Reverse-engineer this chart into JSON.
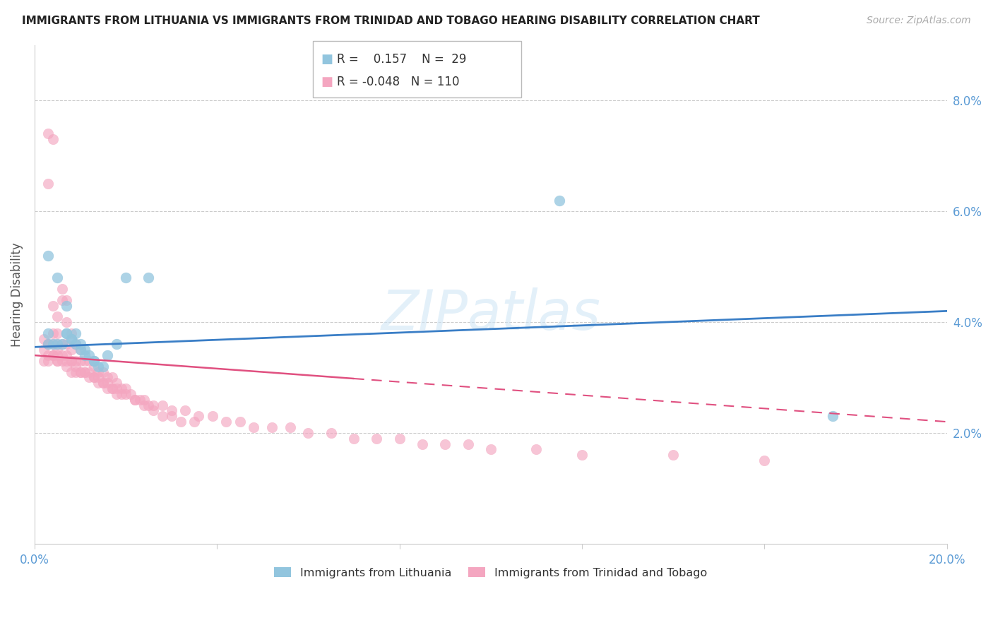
{
  "title": "IMMIGRANTS FROM LITHUANIA VS IMMIGRANTS FROM TRINIDAD AND TOBAGO HEARING DISABILITY CORRELATION CHART",
  "source": "Source: ZipAtlas.com",
  "ylabel": "Hearing Disability",
  "xlim": [
    0.0,
    0.2
  ],
  "ylim": [
    0.0,
    0.09
  ],
  "xticks": [
    0.0,
    0.04,
    0.08,
    0.12,
    0.16,
    0.2
  ],
  "xtick_labels": [
    "0.0%",
    "",
    "",
    "",
    "",
    "20.0%"
  ],
  "yticks": [
    0.02,
    0.04,
    0.06,
    0.08
  ],
  "ytick_labels": [
    "2.0%",
    "4.0%",
    "6.0%",
    "8.0%"
  ],
  "color_blue": "#92c5de",
  "color_pink": "#f4a6c0",
  "color_blue_line": "#3a7ec6",
  "color_pink_line": "#e05080",
  "legend_R_blue": "0.157",
  "legend_N_blue": "29",
  "legend_R_pink": "-0.048",
  "legend_N_pink": "110",
  "watermark": "ZIPatlas",
  "blue_line_y_start": 0.0355,
  "blue_line_y_end": 0.042,
  "pink_line_y_start": 0.034,
  "pink_line_y_end": 0.022,
  "blue_points_x": [
    0.003,
    0.005,
    0.007,
    0.007,
    0.008,
    0.008,
    0.009,
    0.009,
    0.01,
    0.01,
    0.011,
    0.011,
    0.012,
    0.013,
    0.013,
    0.014,
    0.015,
    0.016,
    0.018,
    0.02,
    0.025,
    0.003,
    0.004,
    0.005,
    0.006,
    0.007,
    0.115,
    0.003,
    0.175
  ],
  "blue_points_y": [
    0.052,
    0.048,
    0.043,
    0.038,
    0.037,
    0.037,
    0.038,
    0.036,
    0.036,
    0.035,
    0.035,
    0.034,
    0.034,
    0.033,
    0.033,
    0.032,
    0.032,
    0.034,
    0.036,
    0.048,
    0.048,
    0.038,
    0.036,
    0.036,
    0.036,
    0.038,
    0.062,
    0.036,
    0.023
  ],
  "pink_points_x": [
    0.002,
    0.002,
    0.003,
    0.003,
    0.003,
    0.003,
    0.004,
    0.004,
    0.004,
    0.004,
    0.005,
    0.005,
    0.005,
    0.005,
    0.005,
    0.006,
    0.006,
    0.006,
    0.006,
    0.007,
    0.007,
    0.007,
    0.007,
    0.008,
    0.008,
    0.008,
    0.009,
    0.009,
    0.009,
    0.01,
    0.01,
    0.01,
    0.011,
    0.011,
    0.012,
    0.012,
    0.013,
    0.013,
    0.014,
    0.014,
    0.015,
    0.015,
    0.016,
    0.016,
    0.017,
    0.017,
    0.018,
    0.018,
    0.019,
    0.02,
    0.021,
    0.022,
    0.023,
    0.024,
    0.025,
    0.026,
    0.028,
    0.03,
    0.032,
    0.035,
    0.002,
    0.003,
    0.003,
    0.004,
    0.004,
    0.005,
    0.005,
    0.006,
    0.007,
    0.007,
    0.008,
    0.008,
    0.009,
    0.01,
    0.011,
    0.012,
    0.013,
    0.014,
    0.015,
    0.016,
    0.017,
    0.018,
    0.019,
    0.02,
    0.022,
    0.024,
    0.026,
    0.028,
    0.03,
    0.033,
    0.036,
    0.039,
    0.042,
    0.045,
    0.048,
    0.052,
    0.056,
    0.06,
    0.065,
    0.07,
    0.075,
    0.08,
    0.085,
    0.09,
    0.095,
    0.1,
    0.11,
    0.12,
    0.14,
    0.16
  ],
  "pink_points_y": [
    0.035,
    0.033,
    0.074,
    0.065,
    0.036,
    0.033,
    0.073,
    0.043,
    0.038,
    0.034,
    0.041,
    0.038,
    0.036,
    0.034,
    0.033,
    0.046,
    0.044,
    0.036,
    0.033,
    0.044,
    0.04,
    0.036,
    0.033,
    0.038,
    0.035,
    0.033,
    0.036,
    0.033,
    0.031,
    0.035,
    0.033,
    0.031,
    0.033,
    0.031,
    0.033,
    0.031,
    0.032,
    0.03,
    0.031,
    0.029,
    0.031,
    0.029,
    0.03,
    0.028,
    0.03,
    0.028,
    0.029,
    0.027,
    0.028,
    0.028,
    0.027,
    0.026,
    0.026,
    0.025,
    0.025,
    0.024,
    0.023,
    0.023,
    0.022,
    0.022,
    0.037,
    0.036,
    0.034,
    0.036,
    0.034,
    0.035,
    0.033,
    0.034,
    0.034,
    0.032,
    0.033,
    0.031,
    0.032,
    0.031,
    0.031,
    0.03,
    0.03,
    0.03,
    0.029,
    0.029,
    0.028,
    0.028,
    0.027,
    0.027,
    0.026,
    0.026,
    0.025,
    0.025,
    0.024,
    0.024,
    0.023,
    0.023,
    0.022,
    0.022,
    0.021,
    0.021,
    0.021,
    0.02,
    0.02,
    0.019,
    0.019,
    0.019,
    0.018,
    0.018,
    0.018,
    0.017,
    0.017,
    0.016,
    0.016,
    0.015
  ]
}
